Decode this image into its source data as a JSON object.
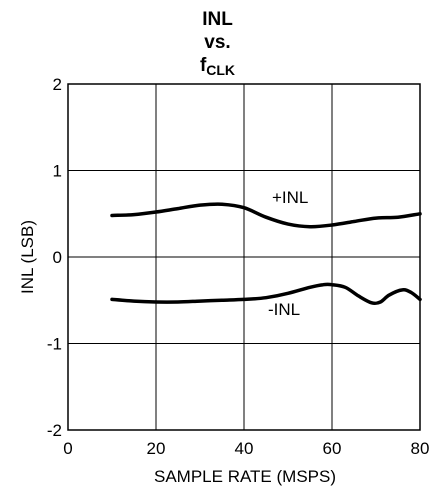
{
  "chart_data": {
    "type": "line",
    "title_line1": "INL",
    "title_line2": "vs.",
    "title_f": "f",
    "title_sub": "CLK",
    "xlabel": "SAMPLE RATE (MSPS)",
    "ylabel": "INL (LSB)",
    "xlim": [
      0,
      80
    ],
    "ylim": [
      -2,
      2
    ],
    "xticks": [
      "0",
      "20",
      "40",
      "60",
      "80"
    ],
    "yticks": [
      "2",
      "1",
      "0",
      "-1",
      "-2"
    ],
    "grid": true,
    "series": [
      {
        "name": "+INL",
        "x": [
          10,
          15,
          20,
          25,
          30,
          35,
          40,
          45,
          50,
          55,
          60,
          65,
          70,
          75,
          80
        ],
        "y": [
          0.48,
          0.49,
          0.52,
          0.56,
          0.6,
          0.61,
          0.57,
          0.46,
          0.38,
          0.35,
          0.37,
          0.41,
          0.45,
          0.46,
          0.5
        ]
      },
      {
        "name": "-INL",
        "x": [
          10,
          15,
          20,
          25,
          30,
          35,
          40,
          45,
          50,
          55,
          58,
          60,
          63,
          66,
          69,
          71,
          73,
          76,
          78,
          80
        ],
        "y": [
          -0.49,
          -0.51,
          -0.52,
          -0.52,
          -0.51,
          -0.5,
          -0.49,
          -0.47,
          -0.42,
          -0.35,
          -0.32,
          -0.32,
          -0.35,
          -0.45,
          -0.53,
          -0.52,
          -0.44,
          -0.38,
          -0.41,
          -0.49
        ]
      }
    ]
  }
}
